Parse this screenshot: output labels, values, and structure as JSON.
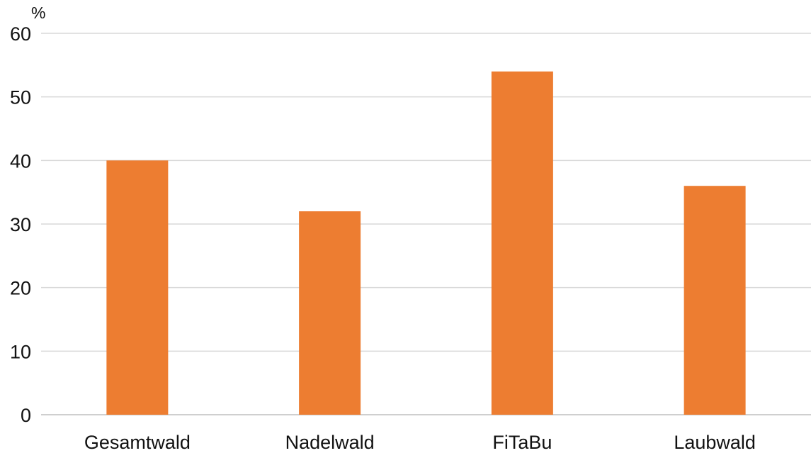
{
  "chart_data": {
    "type": "bar",
    "title": "",
    "xlabel": "",
    "ylabel": "%",
    "categories": [
      "Gesamtwald",
      "Nadelwald",
      "FiTaBu",
      "Laubwald"
    ],
    "values": [
      40,
      32,
      54,
      36
    ],
    "ylim": [
      0,
      60
    ],
    "yticks": [
      "0",
      "10",
      "20",
      "30",
      "40",
      "50",
      "60"
    ],
    "grid": true,
    "legend": "none",
    "bar_color": "#ED7D31",
    "grid_color": "#D9D9D9"
  }
}
